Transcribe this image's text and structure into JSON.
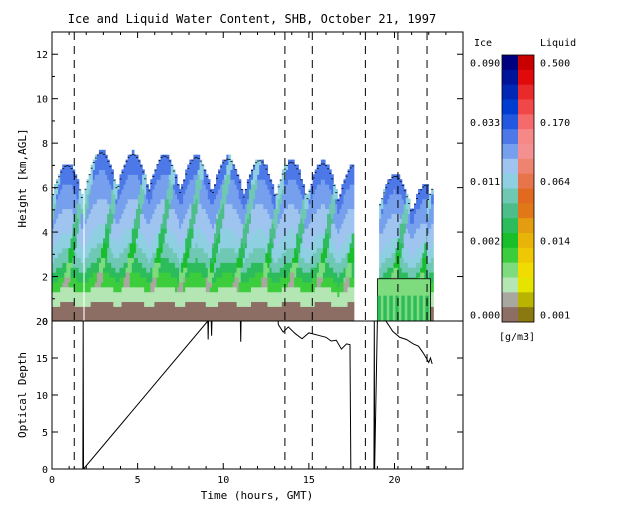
{
  "chart_data": [
    {
      "type": "heatmap",
      "title": "Ice and Liquid Water Content, SHB, October 21, 1997",
      "xlabel": "",
      "ylabel": "Height [km,AGL]",
      "xlim": [
        0,
        24
      ],
      "ylim": [
        0,
        13
      ],
      "x_ticks": [
        0,
        5,
        10,
        15,
        20
      ],
      "y_ticks": [
        0,
        2,
        4,
        6,
        8,
        10,
        12
      ],
      "y_tick_labels": [
        "0",
        "2",
        "4",
        "6",
        "8",
        "10",
        "12"
      ],
      "grid": false,
      "dashed_lines_x": [
        1.3,
        13.6,
        15.2,
        18.3,
        20.2,
        21.9
      ],
      "colorbar": {
        "unit": "[g/m3]",
        "ice": {
          "header": "Ice",
          "tick_labels": [
            "0.090",
            "0.033",
            "0.011",
            "0.002",
            "0.000"
          ],
          "colors": [
            "#00007f",
            "#00149a",
            "#0028b4",
            "#003cd0",
            "#2257e0",
            "#4d78e8",
            "#76a0ee",
            "#9ec4ef",
            "#8ed0e2",
            "#6fc8b4",
            "#4dbe8a",
            "#2dbc5c",
            "#19bf2a",
            "#3ccd3c",
            "#7edb7e",
            "#b4e6b4",
            "#a8a8a0",
            "#8c6e64"
          ]
        },
        "liquid": {
          "header": "Liquid",
          "tick_labels": [
            "0.500",
            "0.170",
            "0.064",
            "0.014",
            "0.001"
          ],
          "colors": [
            "#c80000",
            "#e00a0a",
            "#ea2a2a",
            "#f04848",
            "#f56a6a",
            "#f78888",
            "#f49090",
            "#ee8470",
            "#e8744c",
            "#e26a20",
            "#e07818",
            "#e49c10",
            "#e8b40a",
            "#eec804",
            "#f0dc00",
            "#e4e400",
            "#b8b400",
            "#8a7810"
          ]
        }
      },
      "cloud_periods": [
        {
          "start": 0.0,
          "end": 1.7,
          "top": 7.3
        },
        {
          "start": 1.9,
          "end": 17.6,
          "top": 7.6
        },
        {
          "start": 19.1,
          "end": 21.9,
          "top": 6.7
        },
        {
          "start": 21.9,
          "end": 22.2,
          "top": 7.0
        }
      ],
      "liquid_layer": {
        "start": 19.0,
        "end": 22.1,
        "top": 1.9
      }
    },
    {
      "type": "line",
      "title": "",
      "xlabel": "Time (hours, GMT)",
      "ylabel": "Optical Depth",
      "xlim": [
        0,
        24
      ],
      "ylim": [
        0,
        20
      ],
      "x_ticks": [
        0,
        5,
        10,
        15,
        20
      ],
      "x_tick_labels": [
        "0",
        "5",
        "10",
        "15",
        "20"
      ],
      "y_ticks": [
        0,
        5,
        10,
        15,
        20
      ],
      "y_tick_labels": [
        "0",
        "5",
        "10",
        "15",
        "20"
      ],
      "grid": false,
      "dashed_lines_x": [
        1.3,
        13.6,
        15.2,
        18.3,
        20.2,
        21.9
      ],
      "series": [
        {
          "x": [
            1.8,
            1.82,
            1.84,
            9.1,
            9.12,
            9.14,
            9.3,
            9.32,
            9.34,
            11.0,
            11.02,
            11.04,
            13.2,
            13.22,
            13.5,
            13.8,
            14.2,
            14.6,
            15.0,
            15.5,
            16.0,
            16.3,
            16.6,
            16.9,
            17.2,
            17.4,
            17.45,
            17.47
          ],
          "y": [
            0,
            20,
            0,
            20,
            17.5,
            20,
            20,
            18,
            20,
            20,
            17.2,
            20,
            20,
            19.5,
            18.5,
            19.2,
            18.3,
            17.6,
            18.4,
            18.1,
            17.8,
            17.3,
            17.4,
            16.2,
            16.9,
            16.8,
            0,
            0
          ]
        },
        {
          "x": [
            18.8,
            18.82,
            18.84,
            19.0,
            19.5,
            19.9,
            20.3,
            20.7,
            21.1,
            21.4,
            21.7,
            22.0,
            22.1,
            22.2
          ],
          "y": [
            0,
            20,
            0,
            20,
            20,
            18.6,
            17.8,
            17.5,
            16.9,
            16.6,
            15.6,
            14.4,
            15.0,
            14.2
          ]
        }
      ]
    }
  ]
}
